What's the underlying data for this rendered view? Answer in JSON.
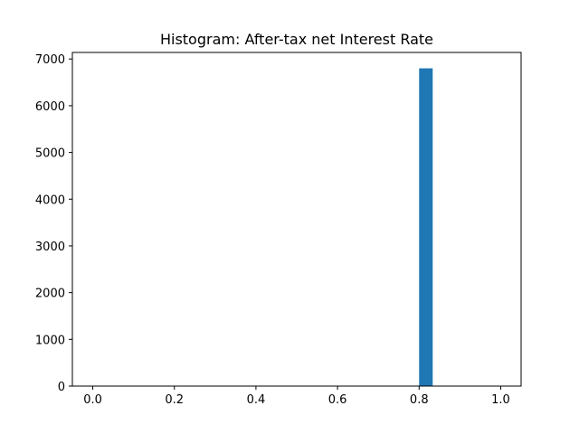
{
  "chart_data": {
    "type": "bar",
    "title": "Histogram:  After-tax net Interest Rate",
    "xlabel": "",
    "ylabel": "",
    "xlim": [
      -0.05,
      1.05
    ],
    "ylim": [
      0,
      7140
    ],
    "x_ticks": [
      0.0,
      0.2,
      0.4,
      0.6,
      0.8,
      1.0
    ],
    "x_tick_labels": [
      "0.0",
      "0.2",
      "0.4",
      "0.6",
      "0.8",
      "1.0"
    ],
    "y_ticks": [
      0,
      1000,
      2000,
      3000,
      4000,
      5000,
      6000,
      7000
    ],
    "y_tick_labels": [
      "0",
      "1000",
      "2000",
      "3000",
      "4000",
      "5000",
      "6000",
      "7000"
    ],
    "grid": false,
    "bar_color": "#1f77b4",
    "bins": [
      {
        "x0": 0.8,
        "x1": 0.8333,
        "count": 6800
      }
    ]
  }
}
